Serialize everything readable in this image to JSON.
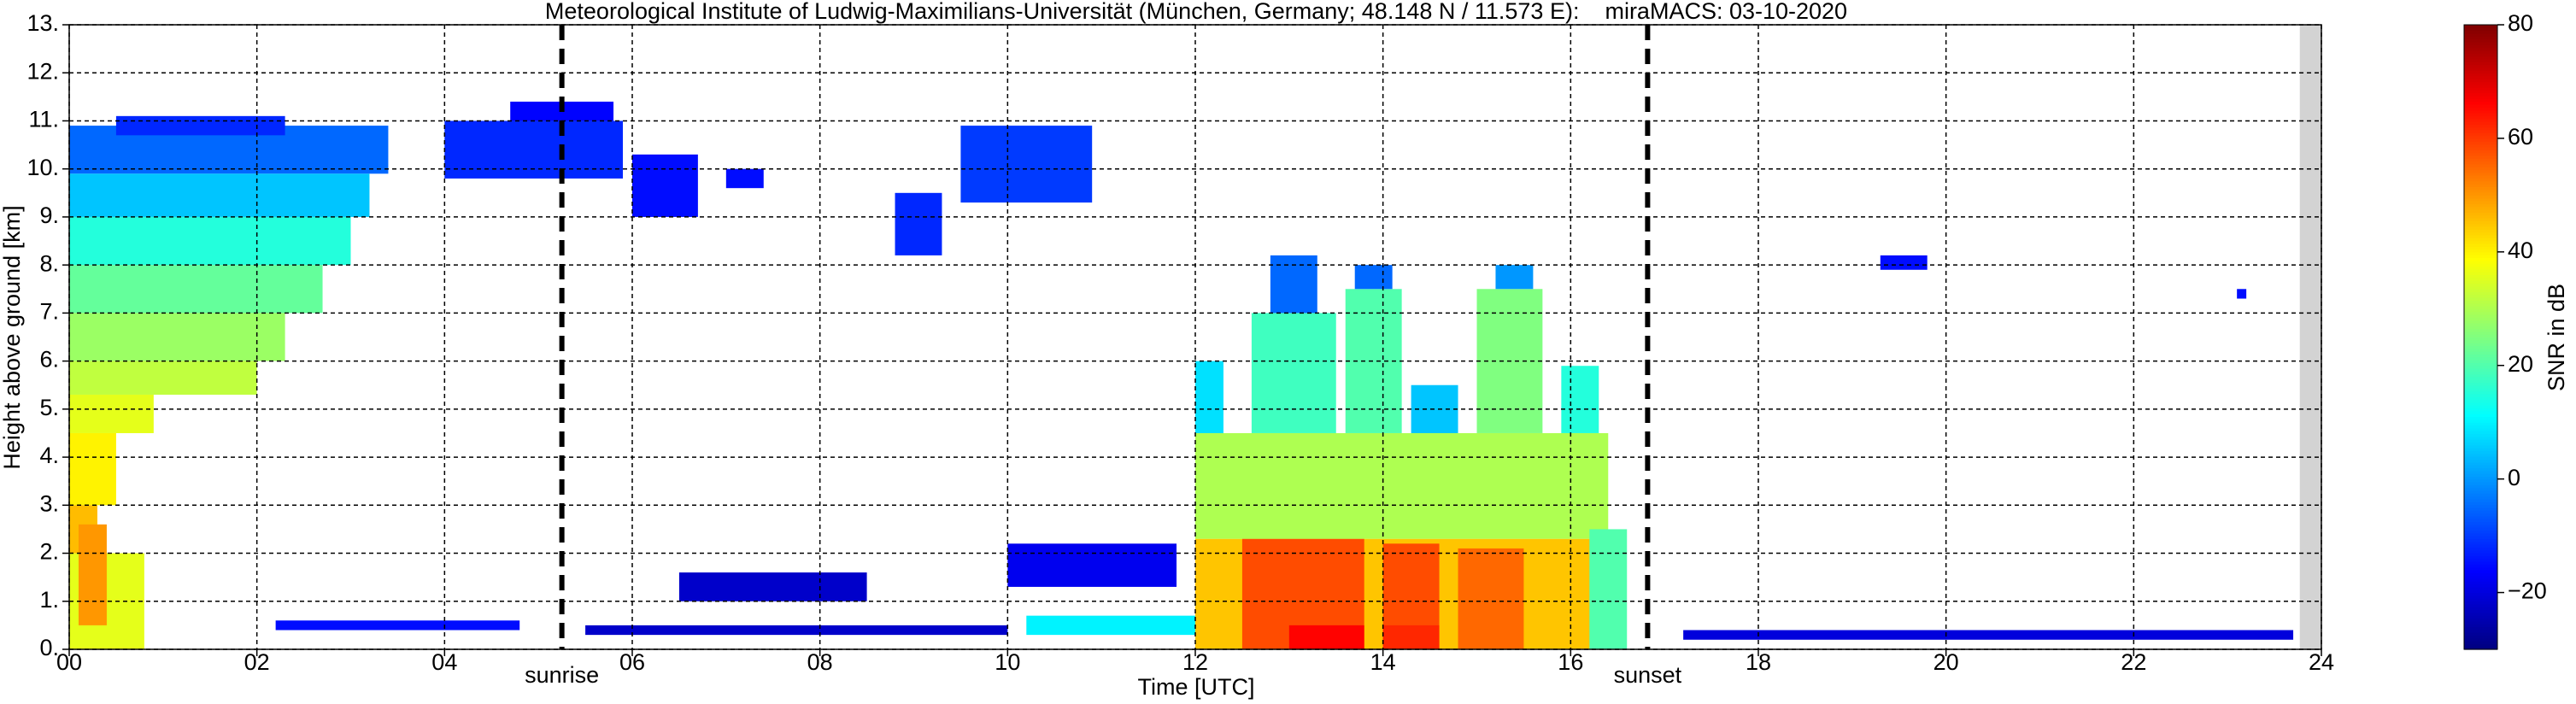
{
  "chart_data": {
    "type": "time-height",
    "title": "Meteorological Institute of Ludwig-Maximilians-Universität (München, Germany; 48.148 N / 11.573 E):    miraMACS: 03-10-2020",
    "x_label": "Time [UTC]",
    "y_label": "Height above ground [km]",
    "colorbar_label": "SNR in dB",
    "colormap": "jet",
    "grid": true,
    "xlim": [
      0,
      24
    ],
    "ylim": [
      0,
      13
    ],
    "clim": [
      -30,
      80
    ],
    "xticks": [
      {
        "value": 0,
        "label": "00"
      },
      {
        "value": 2,
        "label": "02"
      },
      {
        "value": 4,
        "label": "04"
      },
      {
        "value": 6,
        "label": "06"
      },
      {
        "value": 8,
        "label": "08"
      },
      10,
      12,
      14,
      16,
      18,
      20,
      22,
      24
    ],
    "yticks": [
      {
        "value": 0,
        "label": "0."
      },
      {
        "value": 1,
        "label": "1."
      },
      {
        "value": 2,
        "label": "2."
      },
      {
        "value": 3,
        "label": "3."
      },
      {
        "value": 4,
        "label": "4."
      },
      {
        "value": 5,
        "label": "5."
      },
      {
        "value": 6,
        "label": "6."
      },
      {
        "value": 7,
        "label": "7."
      },
      {
        "value": 8,
        "label": "8."
      },
      {
        "value": 9,
        "label": "9."
      },
      {
        "value": 10,
        "label": "10."
      },
      {
        "value": 11,
        "label": "11."
      },
      {
        "value": 12,
        "label": "12."
      },
      {
        "value": 13,
        "label": "13."
      }
    ],
    "cticks": [
      {
        "value": -20,
        "label": "−20"
      },
      0,
      20,
      40,
      60,
      80
    ],
    "annotations": [
      {
        "text": "sunrise",
        "x": 5.25
      },
      {
        "text": "sunset",
        "x": 16.82
      }
    ],
    "no_data_from": 23.77,
    "echoes": [
      {
        "t": [
          0,
          3.4
        ],
        "h": [
          9.9,
          10.9
        ],
        "snr": -5
      },
      {
        "t": [
          0.5,
          2.3
        ],
        "h": [
          10.7,
          11.1
        ],
        "snr": -12
      },
      {
        "t": [
          0,
          3.2
        ],
        "h": [
          9.0,
          9.9
        ],
        "snr": 5
      },
      {
        "t": [
          0,
          3.0
        ],
        "h": [
          8.0,
          9.0
        ],
        "snr": 15
      },
      {
        "t": [
          0,
          2.7
        ],
        "h": [
          7.0,
          8.0
        ],
        "snr": 22
      },
      {
        "t": [
          0,
          2.3
        ],
        "h": [
          6.0,
          7.0
        ],
        "snr": 28
      },
      {
        "t": [
          0,
          2.0
        ],
        "h": [
          5.3,
          6.0
        ],
        "snr": 32
      },
      {
        "t": [
          0,
          0.9
        ],
        "h": [
          4.5,
          5.3
        ],
        "snr": 36
      },
      {
        "t": [
          0,
          0.5
        ],
        "h": [
          3.0,
          4.5
        ],
        "snr": 40
      },
      {
        "t": [
          0,
          0.3
        ],
        "h": [
          2.0,
          3.0
        ],
        "snr": 46
      },
      {
        "t": [
          0,
          0.8
        ],
        "h": [
          0,
          2.0
        ],
        "snr": 36
      },
      {
        "t": [
          0.1,
          0.4
        ],
        "h": [
          0.5,
          2.6
        ],
        "snr": 50
      },
      {
        "t": [
          4.0,
          5.9
        ],
        "h": [
          9.8,
          11.0
        ],
        "snr": -12
      },
      {
        "t": [
          4.7,
          5.8
        ],
        "h": [
          11.0,
          11.4
        ],
        "snr": -16
      },
      {
        "t": [
          6.0,
          6.7
        ],
        "h": [
          9.0,
          10.3
        ],
        "snr": -15
      },
      {
        "t": [
          7.0,
          7.4
        ],
        "h": [
          9.6,
          10.0
        ],
        "snr": -15
      },
      {
        "t": [
          8.8,
          9.3
        ],
        "h": [
          8.2,
          9.5
        ],
        "snr": -12
      },
      {
        "t": [
          9.5,
          10.9
        ],
        "h": [
          9.3,
          10.9
        ],
        "snr": -10
      },
      {
        "t": [
          2.2,
          4.8
        ],
        "h": [
          0.4,
          0.6
        ],
        "snr": -15
      },
      {
        "t": [
          5.5,
          10.0
        ],
        "h": [
          0.3,
          0.5
        ],
        "snr": -22
      },
      {
        "t": [
          6.5,
          8.5
        ],
        "h": [
          1.0,
          1.6
        ],
        "snr": -22
      },
      {
        "t": [
          10.0,
          11.8
        ],
        "h": [
          1.3,
          2.2
        ],
        "snr": -18
      },
      {
        "t": [
          10.2,
          12.0
        ],
        "h": [
          0.3,
          0.7
        ],
        "snr": 10
      },
      {
        "t": [
          12.0,
          16.3
        ],
        "h": [
          0,
          2.3
        ],
        "snr": 45
      },
      {
        "t": [
          12.5,
          13.8
        ],
        "h": [
          0,
          2.3
        ],
        "snr": 58
      },
      {
        "t": [
          14.0,
          14.6
        ],
        "h": [
          0,
          2.2
        ],
        "snr": 58
      },
      {
        "t": [
          14.8,
          15.5
        ],
        "h": [
          0,
          2.1
        ],
        "snr": 55
      },
      {
        "t": [
          13.0,
          13.8
        ],
        "h": [
          0,
          0.5
        ],
        "snr": 66
      },
      {
        "t": [
          14.0,
          14.6
        ],
        "h": [
          0,
          0.5
        ],
        "snr": 62
      },
      {
        "t": [
          12.0,
          16.4
        ],
        "h": [
          2.3,
          4.5
        ],
        "snr": 30
      },
      {
        "t": [
          12.0,
          12.3
        ],
        "h": [
          4.5,
          6.0
        ],
        "snr": 8
      },
      {
        "t": [
          12.6,
          13.5
        ],
        "h": [
          4.5,
          7.0
        ],
        "snr": 18
      },
      {
        "t": [
          12.8,
          13.3
        ],
        "h": [
          7.0,
          8.2
        ],
        "snr": -5
      },
      {
        "t": [
          13.6,
          14.2
        ],
        "h": [
          4.5,
          7.5
        ],
        "snr": 20
      },
      {
        "t": [
          13.7,
          14.1
        ],
        "h": [
          7.5,
          8.0
        ],
        "snr": -5
      },
      {
        "t": [
          14.3,
          14.8
        ],
        "h": [
          4.5,
          5.5
        ],
        "snr": 5
      },
      {
        "t": [
          15.0,
          15.7
        ],
        "h": [
          4.5,
          7.5
        ],
        "snr": 25
      },
      {
        "t": [
          15.2,
          15.6
        ],
        "h": [
          7.5,
          8.0
        ],
        "snr": 0
      },
      {
        "t": [
          15.9,
          16.3
        ],
        "h": [
          4.5,
          5.9
        ],
        "snr": 15
      },
      {
        "t": [
          16.2,
          16.6
        ],
        "h": [
          0,
          2.5
        ],
        "snr": 20
      },
      {
        "t": [
          17.2,
          23.7
        ],
        "h": [
          0.2,
          0.4
        ],
        "snr": -20
      },
      {
        "t": [
          19.3,
          19.8
        ],
        "h": [
          7.9,
          8.2
        ],
        "snr": -15
      },
      {
        "t": [
          23.1,
          23.2
        ],
        "h": [
          7.3,
          7.5
        ],
        "snr": -15
      }
    ]
  }
}
